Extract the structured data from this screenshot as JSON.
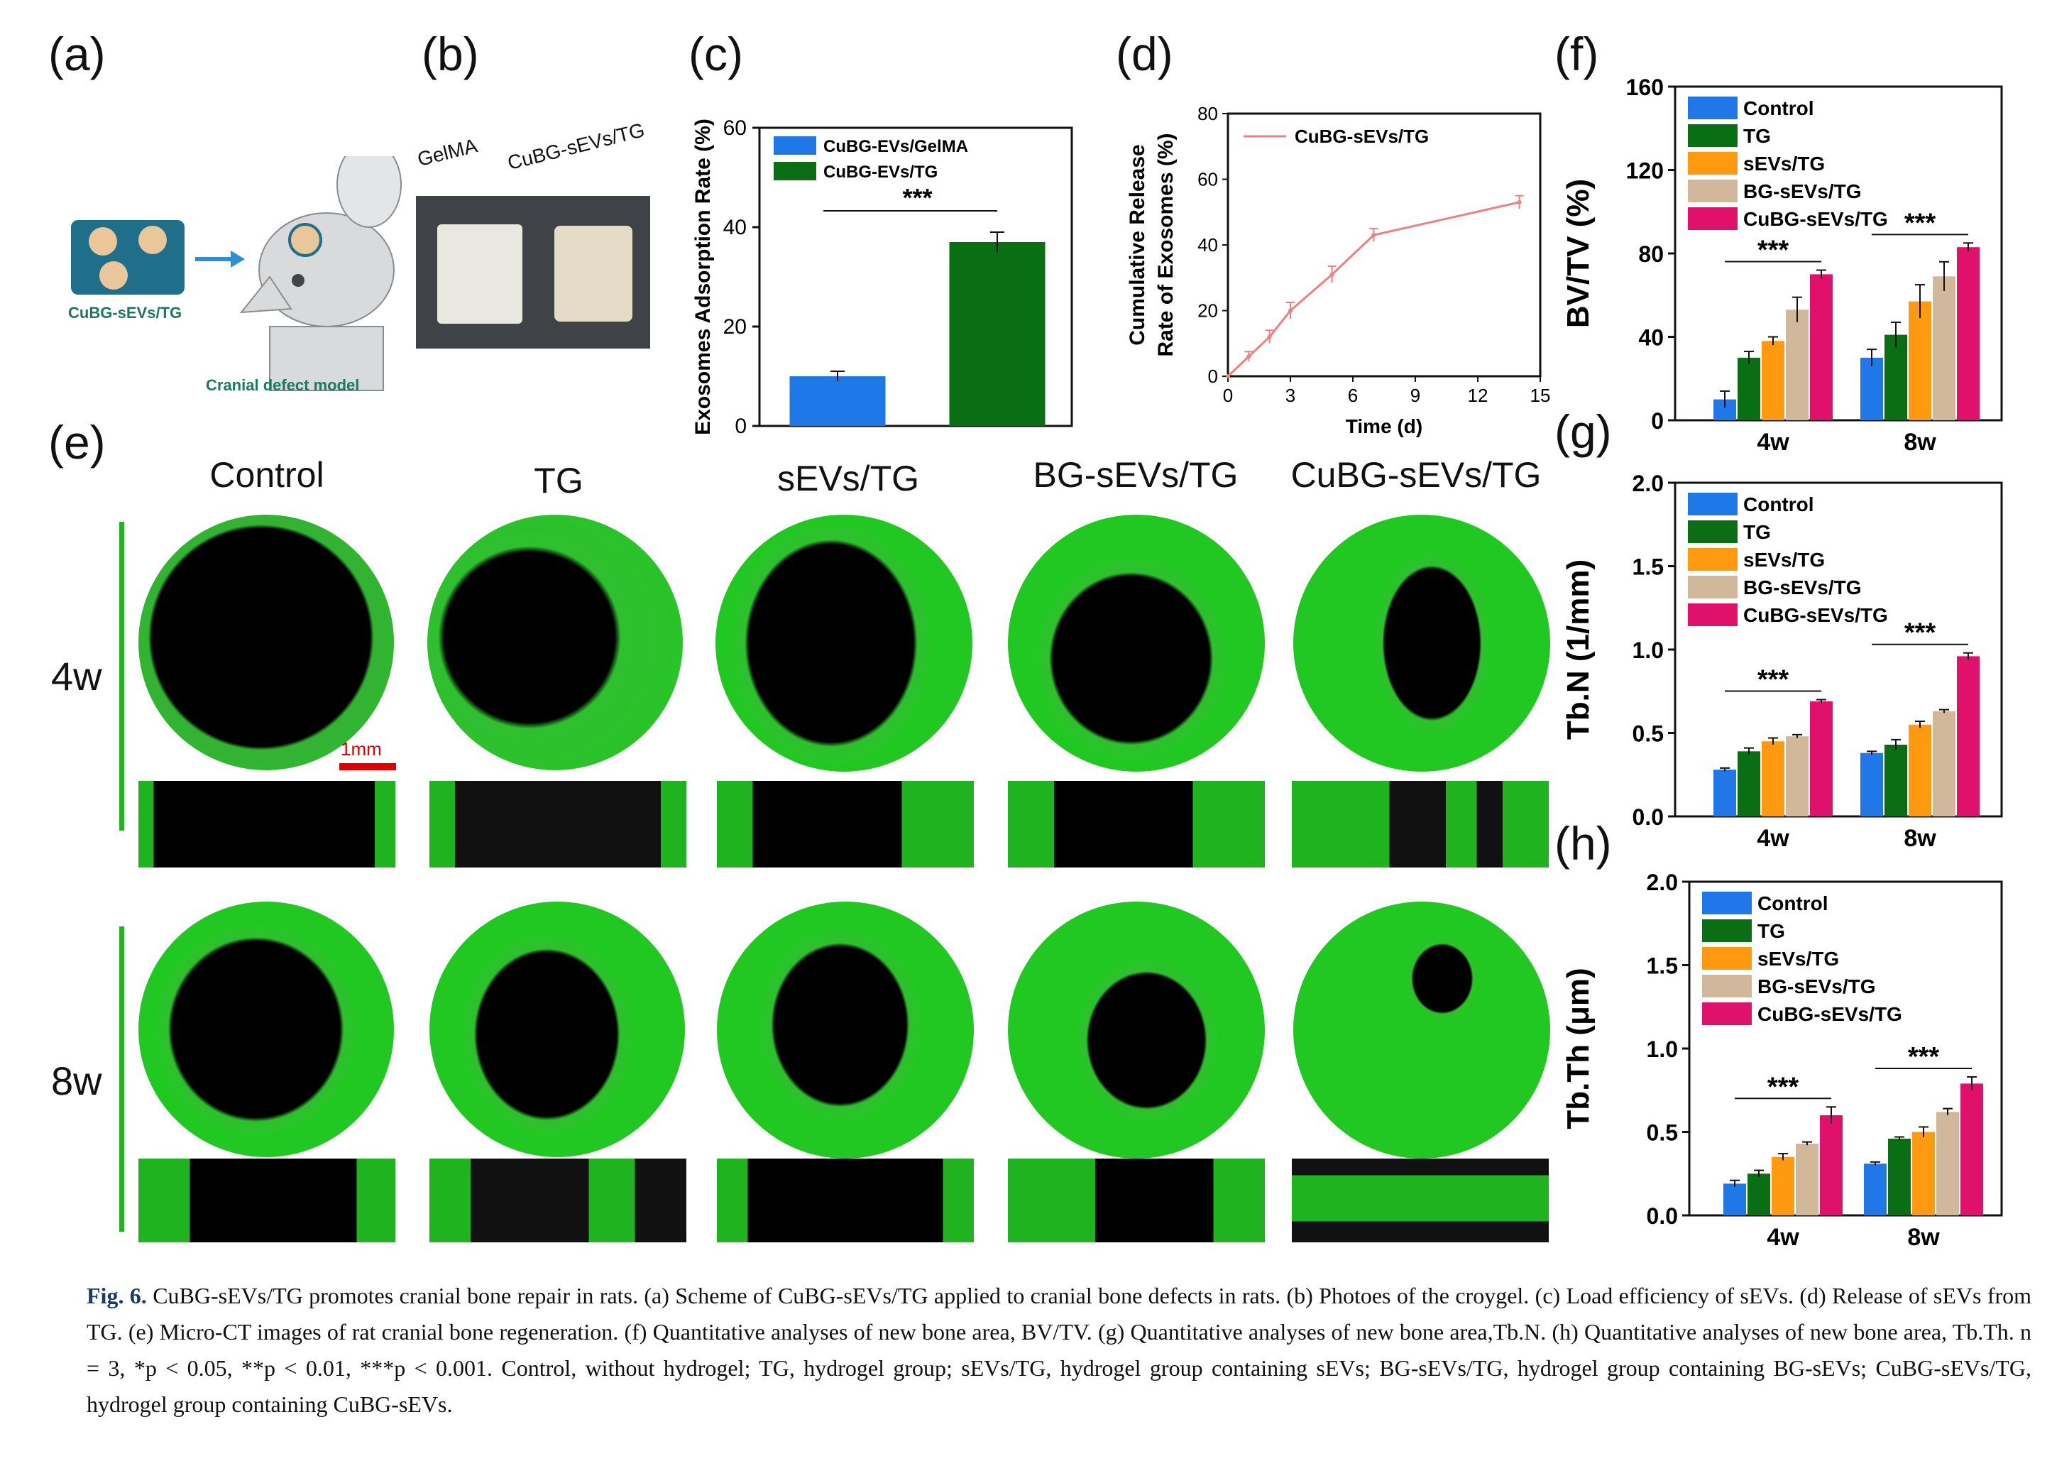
{
  "panels": {
    "a": {
      "letter": "(a)",
      "label_material": "CuBG-sEVs/TG",
      "label_model": "Cranial defect model"
    },
    "b": {
      "letter": "(b)",
      "label_left": "GelMA",
      "label_right": "CuBG-sEVs/TG"
    },
    "c": {
      "letter": "(c)"
    },
    "d": {
      "letter": "(d)"
    },
    "e": {
      "letter": "(e)",
      "columns": [
        "Control",
        "TG",
        "sEVs/TG",
        "BG-sEVs/TG",
        "CuBG-sEVs/TG"
      ],
      "rows": [
        "4w",
        "8w"
      ],
      "scale_bar": "1mm"
    },
    "f": {
      "letter": "(f)"
    },
    "g": {
      "letter": "(g)"
    },
    "h": {
      "letter": "(h)"
    }
  },
  "chart_data": [
    {
      "id": "c",
      "type": "bar",
      "ylabel": "Exosomes Adsorption Rate (%)",
      "ylim": [
        0,
        60
      ],
      "yticks": [
        0,
        20,
        40,
        60
      ],
      "series": [
        {
          "name": "CuBG-EVs/GelMA",
          "value": 10,
          "error": 1,
          "color": "#1f77e8"
        },
        {
          "name": "CuBG-EVs/TG",
          "value": 37,
          "error": 2,
          "color": "#0a6e14"
        }
      ],
      "significance": "***",
      "legend": "top-left"
    },
    {
      "id": "d",
      "type": "line",
      "xlabel": "Time (d)",
      "ylabel_line1": "Cumulative Release",
      "ylabel_line2": "Rate of Exosomes (%)",
      "xlim": [
        0,
        15
      ],
      "ylim": [
        0,
        80
      ],
      "xticks": [
        0,
        3,
        6,
        9,
        12,
        15
      ],
      "yticks": [
        0,
        20,
        40,
        60,
        80
      ],
      "series": [
        {
          "name": "CuBG-sEVs/TG",
          "color": "#f08080",
          "x": [
            0,
            1,
            2,
            3,
            5,
            7,
            14
          ],
          "y": [
            0,
            6,
            12,
            20,
            31,
            43,
            53
          ],
          "err": [
            0,
            1.5,
            2,
            2.5,
            2.5,
            2,
            2
          ]
        }
      ],
      "legend": "top-left"
    },
    {
      "id": "f",
      "type": "bar",
      "ylabel": "BV/TV (%)",
      "ylim": [
        0,
        160
      ],
      "yticks": [
        0,
        40,
        80,
        120,
        160
      ],
      "categories": [
        "4w",
        "8w"
      ],
      "series": [
        {
          "name": "Control",
          "color": "#1f77e8",
          "values": [
            10,
            30
          ],
          "errors": [
            4,
            4
          ]
        },
        {
          "name": "TG",
          "color": "#0a6e14",
          "values": [
            30,
            41
          ],
          "errors": [
            3,
            6
          ]
        },
        {
          "name": "sEVs/TG",
          "color": "#ff9a10",
          "values": [
            38,
            57
          ],
          "errors": [
            2,
            8
          ]
        },
        {
          "name": "BG-sEVs/TG",
          "color": "#d2b89a",
          "values": [
            53,
            69
          ],
          "errors": [
            6,
            7
          ]
        },
        {
          "name": "CuBG-sEVs/TG",
          "color": "#e0116b",
          "values": [
            70,
            83
          ],
          "errors": [
            2,
            2
          ]
        }
      ],
      "significance": [
        "***",
        "***"
      ],
      "legend": "top-left"
    },
    {
      "id": "g",
      "type": "bar",
      "ylabel": "Tb.N (1/mm)",
      "ylim": [
        0,
        2.0
      ],
      "yticks": [
        "0.0",
        "0.5",
        "1.0",
        "1.5",
        "2.0"
      ],
      "categories": [
        "4w",
        "8w"
      ],
      "series": [
        {
          "name": "Control",
          "color": "#1f77e8",
          "values": [
            0.28,
            0.38
          ],
          "errors": [
            0.01,
            0.01
          ]
        },
        {
          "name": "TG",
          "color": "#0a6e14",
          "values": [
            0.39,
            0.43
          ],
          "errors": [
            0.02,
            0.03
          ]
        },
        {
          "name": "sEVs/TG",
          "color": "#ff9a10",
          "values": [
            0.45,
            0.55
          ],
          "errors": [
            0.02,
            0.02
          ]
        },
        {
          "name": "BG-sEVs/TG",
          "color": "#d2b89a",
          "values": [
            0.48,
            0.63
          ],
          "errors": [
            0.01,
            0.01
          ]
        },
        {
          "name": "CuBG-sEVs/TG",
          "color": "#e0116b",
          "values": [
            0.69,
            0.96
          ],
          "errors": [
            0.01,
            0.02
          ]
        }
      ],
      "significance": [
        "***",
        "***"
      ],
      "legend": "top-left"
    },
    {
      "id": "h",
      "type": "bar",
      "ylabel": "Tb.Th (μm)",
      "ylim": [
        0,
        2.0
      ],
      "yticks": [
        "0.0",
        "0.5",
        "1.0",
        "1.5",
        "2.0"
      ],
      "categories": [
        "4w",
        "8w"
      ],
      "series": [
        {
          "name": "Control",
          "color": "#1f77e8",
          "values": [
            0.19,
            0.31
          ],
          "errors": [
            0.02,
            0.01
          ]
        },
        {
          "name": "TG",
          "color": "#0a6e14",
          "values": [
            0.25,
            0.46
          ],
          "errors": [
            0.02,
            0.01
          ]
        },
        {
          "name": "sEVs/TG",
          "color": "#ff9a10",
          "values": [
            0.35,
            0.5
          ],
          "errors": [
            0.02,
            0.03
          ]
        },
        {
          "name": "BG-sEVs/TG",
          "color": "#d2b89a",
          "values": [
            0.43,
            0.62
          ],
          "errors": [
            0.01,
            0.02
          ]
        },
        {
          "name": "CuBG-sEVs/TG",
          "color": "#e0116b",
          "values": [
            0.6,
            0.79
          ],
          "errors": [
            0.05,
            0.04
          ]
        }
      ],
      "significance": [
        "***",
        "***"
      ],
      "legend": "top-left"
    }
  ],
  "caption": {
    "label": "Fig. 6.",
    "text": "CuBG-sEVs/TG promotes cranial bone repair in rats. (a) Scheme of CuBG-sEVs/TG applied to cranial bone defects in rats. (b) Photoes of the croygel. (c) Load efficiency of sEVs. (d) Release of sEVs from TG. (e) Micro-CT images of rat cranial bone regeneration. (f) Quantitative analyses of new bone area, BV/TV. (g) Quantitative analyses of new bone area,Tb.N. (h) Quantitative analyses of new bone area, Tb.Th. n = 3, *p < 0.05, **p < 0.01, ***p < 0.001. Control, without hydrogel; TG, hydrogel group; sEVs/TG, hydrogel group containing sEVs; BG-sEVs/TG, hydrogel group containing BG-sEVs; CuBG-sEVs/TG, hydrogel group containing CuBG-sEVs."
  }
}
